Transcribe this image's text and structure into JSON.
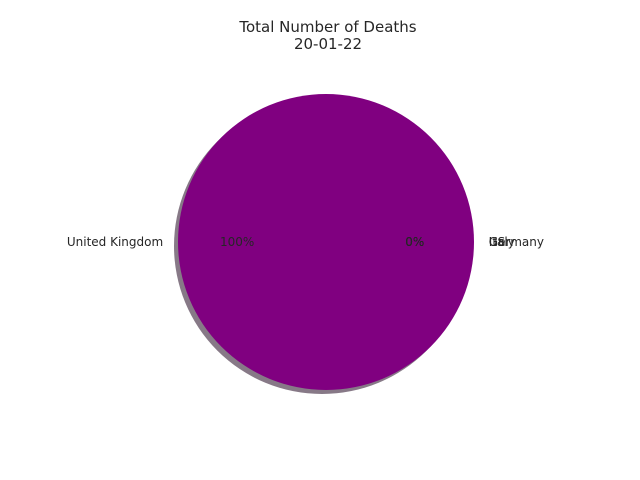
{
  "chart_data": {
    "type": "pie",
    "title": "Total Number of Deaths",
    "subtitle": "20-01-22",
    "categories": [
      "United Kingdom",
      "US",
      "Italy",
      "Germany"
    ],
    "values": [
      100,
      0,
      0,
      0
    ],
    "percent_labels": [
      "100%",
      "0%",
      "0%",
      "0%"
    ],
    "colors": [
      "#800080",
      "#1f77b4",
      "#2ca02c",
      "#d62728"
    ],
    "shadow": true,
    "start_angle_deg": 0
  }
}
